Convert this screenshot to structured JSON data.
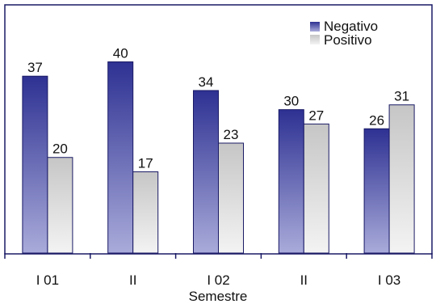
{
  "chart_data": {
    "type": "bar",
    "title": "",
    "xlabel": "Semestre",
    "ylabel": "",
    "categories": [
      "I 01",
      "II",
      "I 02",
      "II",
      "I 03"
    ],
    "series": [
      {
        "name": "Negativo",
        "values": [
          37,
          40,
          34,
          30,
          26
        ],
        "color": "#2e3192"
      },
      {
        "name": "Positivo",
        "values": [
          20,
          17,
          23,
          27,
          31
        ],
        "color": "#c8c8c8"
      }
    ],
    "ylim": [
      0,
      46
    ],
    "grid": false,
    "legend": "top-right",
    "data_labels": true
  }
}
